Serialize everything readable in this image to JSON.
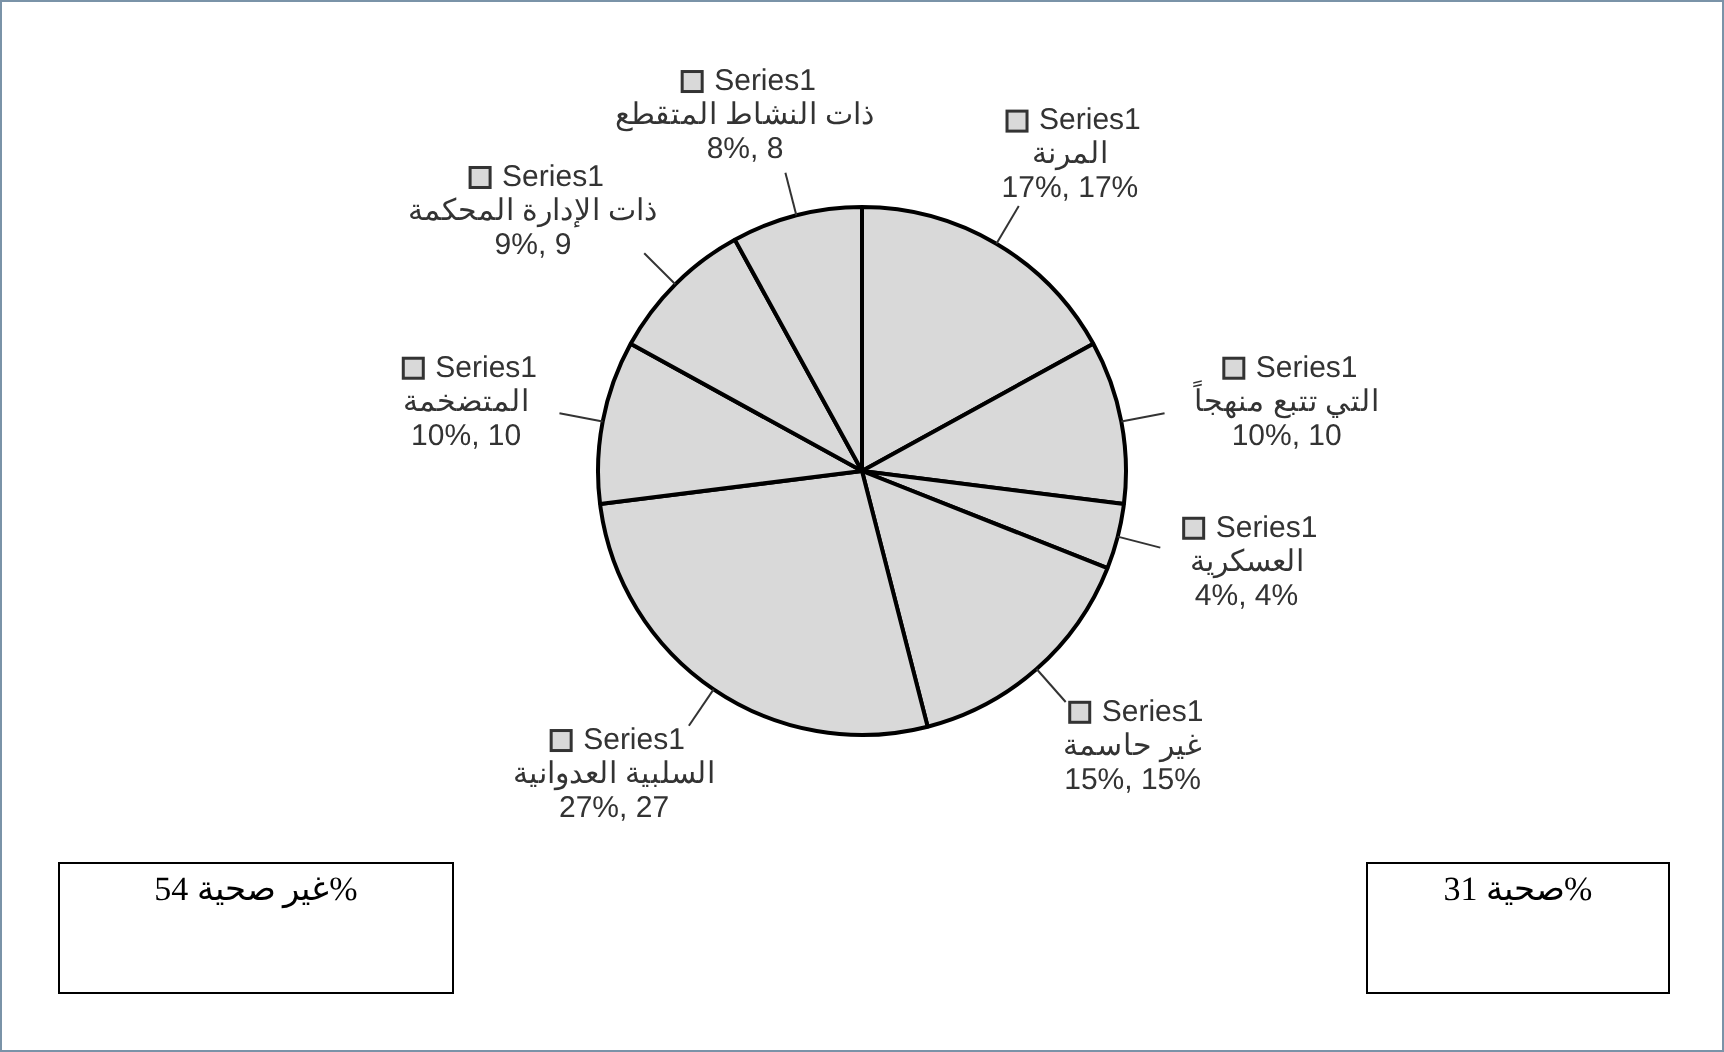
{
  "chart_data": {
    "type": "pie",
    "categories": [
      "المرنة",
      "التي تتبع منهجاً",
      "العسكرية",
      "غير حاسمة",
      "السلبية العدوانية",
      "المتضخمة",
      "ذات الإدارة المحكمة",
      "ذات النشاط المتقطع"
    ],
    "series": [
      {
        "name": "Series1",
        "values": [
          17,
          10,
          4,
          15,
          27,
          10,
          9,
          8
        ]
      }
    ],
    "colors": [
      "#d9d9d9",
      "#d9d9d9",
      "#d9d9d9",
      "#d9d9d9",
      "#d9d9d9",
      "#d9d9d9",
      "#d9d9d9",
      "#d9d9d9"
    ],
    "value_labels": [
      "17%, 17%",
      "10%, 10",
      "4%, 4%",
      "15%, 15%",
      "27%, 27",
      "10%, 10",
      "9%, 9",
      "8%, 8"
    ],
    "legend": "right",
    "annotations": [
      "%غير صحية 54",
      "%صحية 31"
    ]
  }
}
